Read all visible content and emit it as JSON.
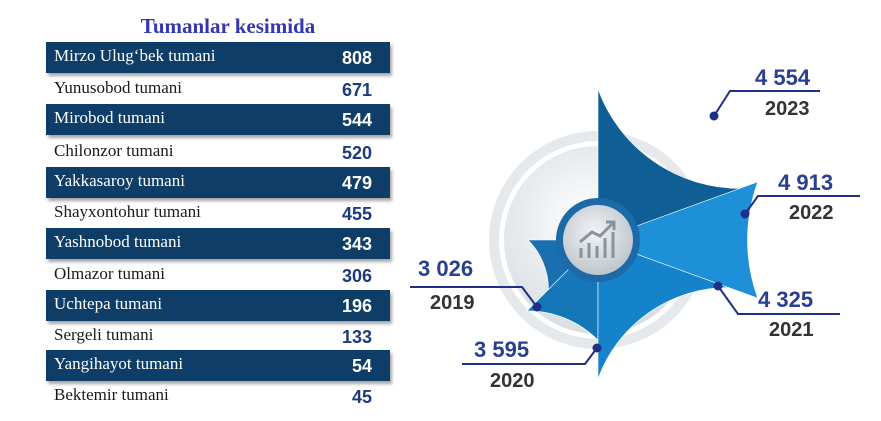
{
  "title": "Tumanlar kesimida",
  "districts": [
    {
      "name": "Mirzo Ulug‘bek tumani",
      "value": "808"
    },
    {
      "name": "Yunusobod tumani",
      "value": "671"
    },
    {
      "name": "Mirobod tumani",
      "value": "544"
    },
    {
      "name": "Chilonzor tumani",
      "value": "520"
    },
    {
      "name": "Yakkasaroy tumani",
      "value": "479"
    },
    {
      "name": "Shayxontohur tumani",
      "value": "455"
    },
    {
      "name": "Yashnobod tumani",
      "value": "343"
    },
    {
      "name": "Olmazor tumani",
      "value": "306"
    },
    {
      "name": "Uchtepa tumani",
      "value": "196"
    },
    {
      "name": "Sergeli tumani",
      "value": "133"
    },
    {
      "name": "Yangihayot tumani",
      "value": "54"
    },
    {
      "name": "Bektemir tumani",
      "value": "45"
    }
  ],
  "chart_data": {
    "type": "pie",
    "categories": [
      "2019",
      "2020",
      "2021",
      "2022",
      "2023"
    ],
    "values": [
      3026,
      3595,
      4325,
      4913,
      4554
    ],
    "value_labels": [
      "3 026",
      "3 595",
      "4 325",
      "4 913",
      "4 554"
    ],
    "colors": [
      "#1a6fb0",
      "#1576b8",
      "#1583cc",
      "#1e90d8",
      "#0f5e96"
    ],
    "center_icon": "chart-up-icon"
  }
}
